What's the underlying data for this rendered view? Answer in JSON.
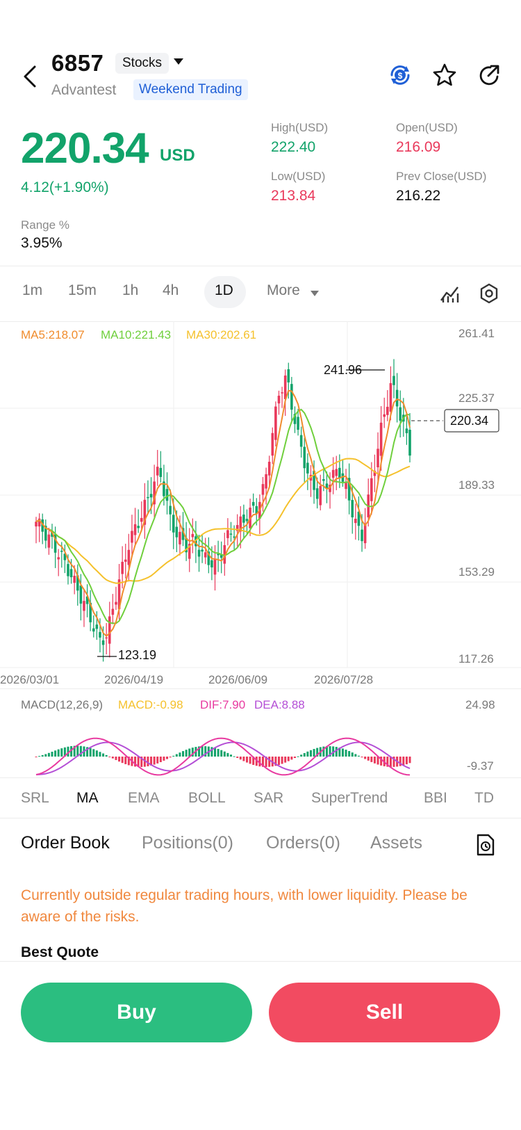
{
  "header": {
    "ticker": "6857",
    "type_label": "Stocks",
    "company": "Advantest",
    "session_badge": "Weekend Trading"
  },
  "quote": {
    "price": "220.34",
    "currency": "USD",
    "change": "4.12(+1.90%)",
    "high_label": "High(USD)",
    "high": "222.40",
    "open_label": "Open(USD)",
    "open": "216.09",
    "low_label": "Low(USD)",
    "low": "213.84",
    "prev_close_label": "Prev Close(USD)",
    "prev_close": "216.22",
    "range_label": "Range %",
    "range": "3.95%"
  },
  "timeframes": [
    "1m",
    "15m",
    "1h",
    "4h",
    "1D"
  ],
  "timeframe_active": "1D",
  "timeframe_more": "More",
  "chart_legend": {
    "ma5": "MA5:218.07",
    "ma10": "MA10:221.43",
    "ma30": "MA30:202.61"
  },
  "y_axis": [
    "261.41",
    "225.37",
    "189.33",
    "153.29",
    "117.26"
  ],
  "x_axis": [
    "2026/03/01",
    "2026/04/19",
    "2026/06/09",
    "2026/07/28"
  ],
  "annotations": {
    "max": "241.96",
    "min": "123.19",
    "last_price": "220.34"
  },
  "macd": {
    "title": "MACD(12,26,9)",
    "macd": "MACD:-0.98",
    "dif": "DIF:7.90",
    "dea": "DEA:8.88",
    "top": "24.98",
    "bottom": "-9.37"
  },
  "indicator_tabs": [
    "SRL",
    "MA",
    "EMA",
    "BOLL",
    "SAR",
    "SuperTrend",
    "BBI",
    "TD"
  ],
  "indicator_active": "MA",
  "bottom_tabs": [
    "Order Book",
    "Positions(0)",
    "Orders(0)",
    "Assets"
  ],
  "notice": "Currently outside regular trading hours, with lower liquidity. Please be aware of the risks.",
  "best_quote_label": "Best Quote",
  "buttons": {
    "buy": "Buy",
    "sell": "Sell"
  },
  "colors": {
    "up": "#12a36a",
    "down": "#e9395b",
    "ma5": "#f08c2d",
    "ma10": "#6fcf3c",
    "ma30": "#f5c12c",
    "dif": "#e83aa0",
    "dea": "#b44fd6",
    "buy": "#2bbe80",
    "sell": "#f24b61"
  },
  "chart_data": {
    "type": "candlestick",
    "y_range": [
      117.26,
      261.41
    ],
    "x_range": [
      "2026/03/01",
      "2026/08/18"
    ],
    "annotated_high": 241.96,
    "annotated_low": 123.19,
    "last_close": 220.34
  }
}
